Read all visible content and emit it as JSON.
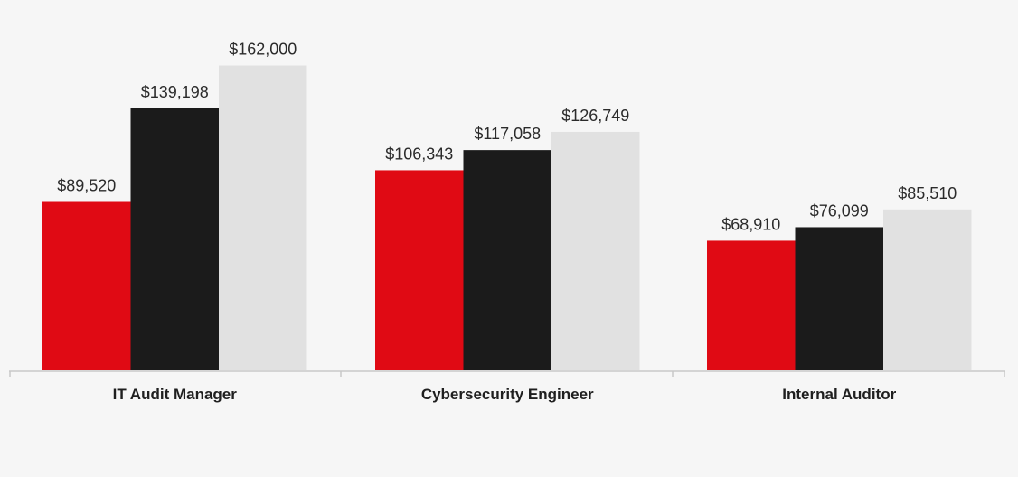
{
  "chart_data": {
    "type": "bar",
    "categories": [
      "IT Audit Manager",
      "Cybersecurity Engineer",
      "Internal Auditor"
    ],
    "series": [
      {
        "values": [
          89520,
          106343,
          68910
        ],
        "labels": [
          "$89,520",
          "$106,343",
          "$68,910"
        ],
        "color": "#e00a14"
      },
      {
        "values": [
          139198,
          117058,
          76099
        ],
        "labels": [
          "$139,198",
          "$117,058",
          "$76,099"
        ],
        "color": "#1b1b1b"
      },
      {
        "values": [
          162000,
          126749,
          85510
        ],
        "labels": [
          "$162,000",
          "$126,749",
          "$85,510"
        ],
        "color": "#e1e1e1"
      }
    ],
    "title": "",
    "xlabel": "",
    "ylabel": "",
    "ylim": [
      0,
      180000
    ],
    "grid": false,
    "legend": "none"
  },
  "colors": {
    "background": "#f6f6f6",
    "axis": "#c8c8c8"
  }
}
